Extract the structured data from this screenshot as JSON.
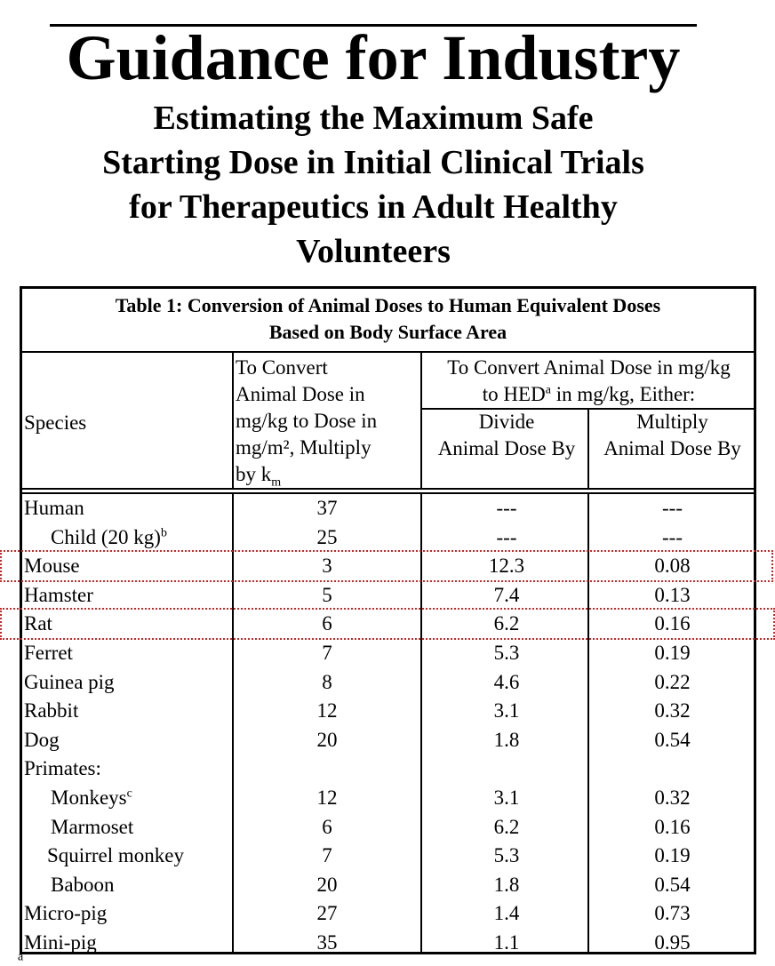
{
  "document": {
    "title": "Guidance for Industry",
    "subtitle_lines": [
      "Estimating the Maximum Safe",
      "Starting Dose in Initial Clinical Trials",
      "for Therapeutics in Adult Healthy",
      "Volunteers"
    ]
  },
  "table": {
    "caption_line1": "Table 1:  Conversion of Animal Doses to Human Equivalent Doses",
    "caption_line2": "Based on Body Surface Area",
    "headers": {
      "species": "Species",
      "km_lines": [
        "To Convert",
        "Animal Dose in",
        "mg/kg to Dose in",
        "mg/m², Multiply",
        "by k"
      ],
      "km_sub": "m",
      "hed_line1": "To Convert Animal Dose in mg/kg",
      "hed_line2_pre": "to HED",
      "hed_line2_sup": "a",
      "hed_line2_post": " in mg/kg, Either:",
      "divide_lines": [
        "Divide",
        "Animal Dose By"
      ],
      "multiply_lines": [
        "Multiply",
        "Animal Dose By"
      ]
    },
    "rows": [
      {
        "species": "Human",
        "sup": "",
        "km": "37",
        "divide": "---",
        "multiply": "---",
        "indent": 0
      },
      {
        "species": "Child (20 kg)",
        "sup": "b",
        "km": "25",
        "divide": "---",
        "multiply": "---",
        "indent": 1
      },
      {
        "species": "Mouse",
        "sup": "",
        "km": "3",
        "divide": "12.3",
        "multiply": "0.08",
        "indent": 0
      },
      {
        "species": "Hamster",
        "sup": "",
        "km": "5",
        "divide": "7.4",
        "multiply": "0.13",
        "indent": 0
      },
      {
        "species": "Rat",
        "sup": "",
        "km": "6",
        "divide": "6.2",
        "multiply": "0.16",
        "indent": 0
      },
      {
        "species": "Ferret",
        "sup": "",
        "km": "7",
        "divide": "5.3",
        "multiply": "0.19",
        "indent": 0
      },
      {
        "species": "Guinea pig",
        "sup": "",
        "km": "8",
        "divide": "4.6",
        "multiply": "0.22",
        "indent": 0
      },
      {
        "species": "Rabbit",
        "sup": "",
        "km": "12",
        "divide": "3.1",
        "multiply": "0.32",
        "indent": 0
      },
      {
        "species": "Dog",
        "sup": "",
        "km": "20",
        "divide": "1.8",
        "multiply": "0.54",
        "indent": 0
      },
      {
        "species": "Primates:",
        "sup": "",
        "km": "",
        "divide": "",
        "multiply": "",
        "indent": 0
      },
      {
        "species": "Monkeys",
        "sup": "c",
        "km": "12",
        "divide": "3.1",
        "multiply": "0.32",
        "indent": 1
      },
      {
        "species": "Marmoset",
        "sup": "",
        "km": "6",
        "divide": "6.2",
        "multiply": "0.16",
        "indent": 1
      },
      {
        "species": "Squirrel monkey",
        "sup": "",
        "km": "7",
        "divide": "5.3",
        "multiply": "0.19",
        "indent": 2
      },
      {
        "species": "Baboon",
        "sup": "",
        "km": "20",
        "divide": "1.8",
        "multiply": "0.54",
        "indent": 1
      },
      {
        "species": "Micro-pig",
        "sup": "",
        "km": "27",
        "divide": "1.4",
        "multiply": "0.73",
        "indent": 0
      },
      {
        "species": "Mini-pig",
        "sup": "",
        "km": "35",
        "divide": "1.1",
        "multiply": "0.95",
        "indent": 0
      }
    ],
    "highlighted_rows": [
      "Mouse",
      "Rat"
    ],
    "highlight_color": "#c62828"
  },
  "footnote_marker": "a"
}
